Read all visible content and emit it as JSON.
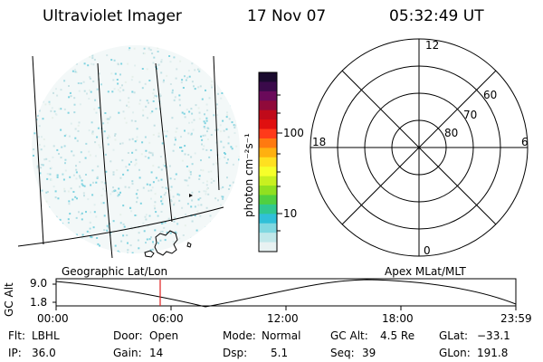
{
  "header": {
    "instrument": "Ultraviolet Imager",
    "date": "17 Nov 07",
    "time": "05:32:49 UT"
  },
  "colorbar": {
    "unit_label": "photon cm⁻²s⁻¹",
    "tick_labels": [
      "100",
      "10"
    ],
    "colors": [
      "#1a0a2e",
      "#3a0a4a",
      "#6a0a5a",
      "#900a3a",
      "#c00a1a",
      "#e01010",
      "#ff3a1a",
      "#ff7a10",
      "#ffb010",
      "#ffe020",
      "#f6ff2a",
      "#c8f020",
      "#90e020",
      "#50d040",
      "#30c890",
      "#30c0d8",
      "#80d8e0",
      "#c0e8ea",
      "#e8f2f2"
    ]
  },
  "polar_plot": {
    "clock_labels": {
      "top": "12",
      "left": "18",
      "right": "6",
      "bottom": "0"
    },
    "lat_labels": [
      "60",
      "70",
      "80"
    ]
  },
  "timeline": {
    "left_label": "Geographic Lat/Lon",
    "right_label": "Apex MLat/MLT",
    "axis_title": "GC Alt",
    "y_ticks": [
      "9.0",
      "1.8"
    ],
    "x_ticks": [
      "00:00",
      "06:00",
      "12:00",
      "18:00",
      "23:59"
    ],
    "current_time_marker": "05:32:49"
  },
  "status": {
    "flt_label": "Flt:",
    "flt_value": "LBHL",
    "ip_label": "IP:",
    "ip_value": "36.0",
    "door_label": "Door:",
    "door_value": "Open",
    "gain_label": "Gain:",
    "gain_value": "14",
    "mode_label": "Mode:",
    "mode_value": "Normal",
    "dsp_label": "Dsp:",
    "dsp_value": "5.1",
    "gcalt_label": "GC Alt:",
    "gcalt_value": "4.5 Re",
    "seq_label": "Seq:",
    "seq_value": "39",
    "glat_label": "GLat:",
    "glat_value": "−33.1",
    "glon_label": "GLon:",
    "glon_value": "191.8"
  }
}
